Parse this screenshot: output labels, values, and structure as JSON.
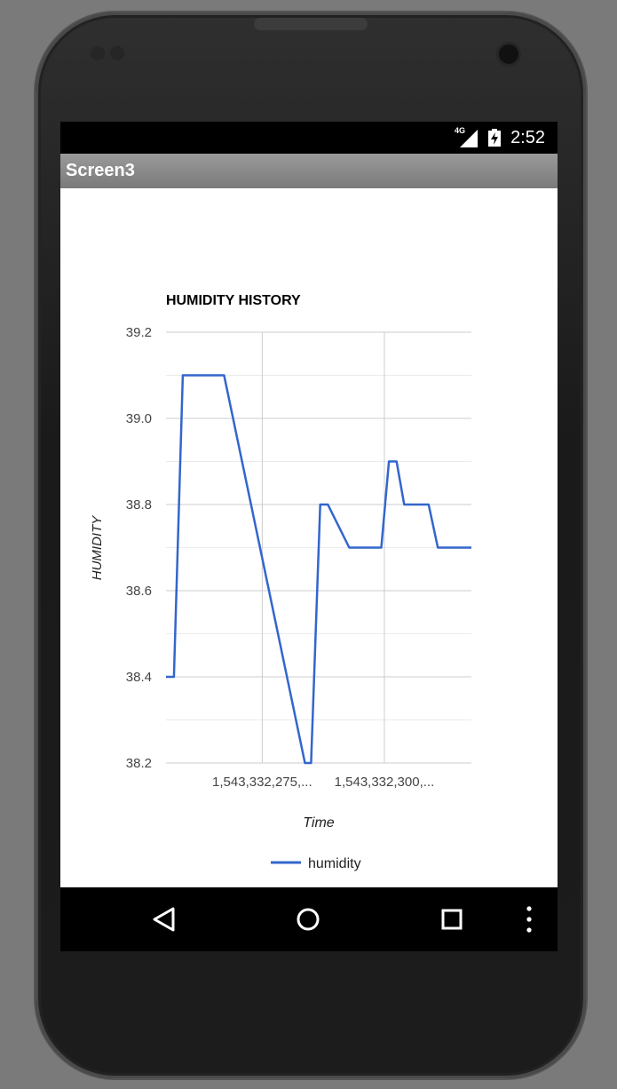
{
  "status_bar": {
    "network": "4G",
    "time": "2:52"
  },
  "app": {
    "title": "Screen3"
  },
  "chart_data": {
    "type": "line",
    "title": "HUMIDITY HISTORY",
    "xlabel": "Time",
    "ylabel": "HUMIDITY",
    "ylim": [
      38.2,
      39.2
    ],
    "yticks": [
      "38.2",
      "38.4",
      "38.6",
      "38.8",
      "39.0",
      "39.2"
    ],
    "xticks": [
      "1,543,332,275,...",
      "1,543,332,300,..."
    ],
    "grid": true,
    "legend_position": "bottom",
    "series": [
      {
        "name": "humidity",
        "color": "#3366cc",
        "values": [
          38.4,
          38.4,
          39.1,
          39.1,
          39.1,
          38.2,
          38.2,
          38.8,
          38.8,
          38.7,
          38.7,
          38.9,
          38.9,
          38.8,
          38.8,
          38.7,
          38.7
        ]
      }
    ]
  },
  "nav": {
    "back_icon": "back-triangle-icon",
    "home_icon": "home-circle-icon",
    "recents_icon": "recents-square-icon",
    "menu_icon": "overflow-menu-icon"
  }
}
